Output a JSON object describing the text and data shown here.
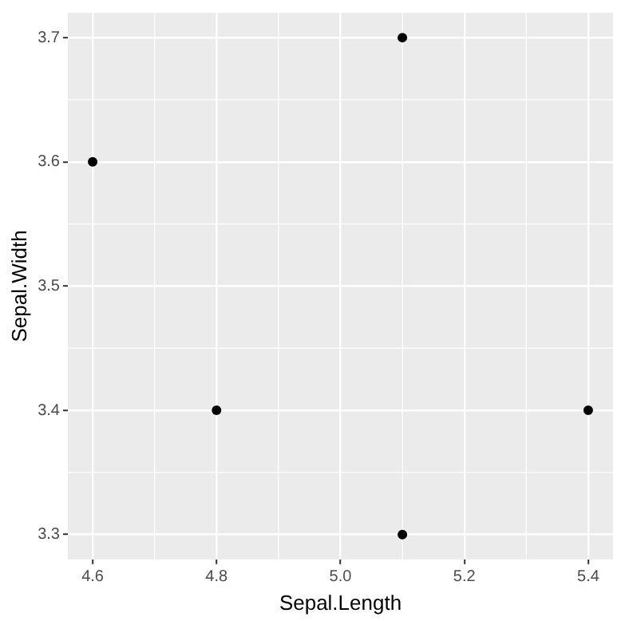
{
  "chart_data": {
    "type": "scatter",
    "xlabel": "Sepal.Length",
    "ylabel": "Sepal.Width",
    "x": [
      5.1,
      4.8,
      5.1,
      4.6,
      5.4
    ],
    "series": [
      {
        "color": "#000000",
        "values": [
          3.3,
          3.4,
          3.7,
          3.6,
          3.4
        ]
      }
    ],
    "xlim": [
      4.56,
      5.44
    ],
    "xticks": [
      4.6,
      4.8,
      {
        "value": 5,
        "label": "5.0"
      },
      5.2,
      5.4
    ],
    "ylim": [
      3.28,
      3.72
    ],
    "yticks": [
      3.3,
      3.4,
      3.5,
      3.6,
      3.7
    ],
    "grid": true,
    "legend": false,
    "marker": "circle"
  }
}
